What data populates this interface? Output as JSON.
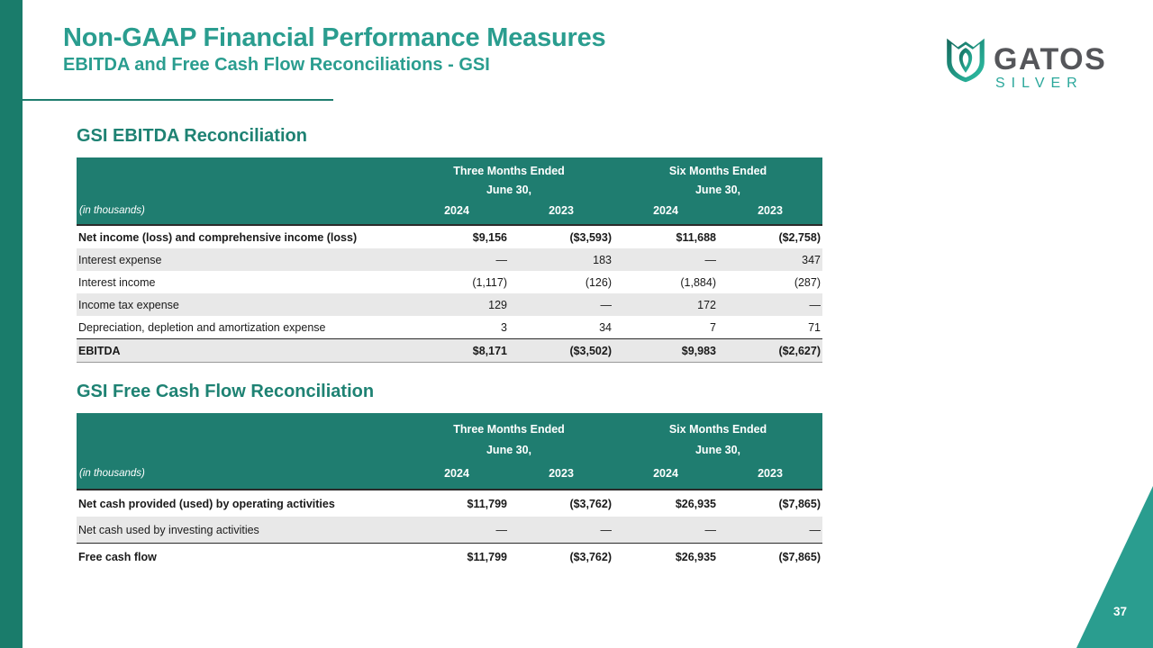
{
  "slide": {
    "title": "Non-GAAP Financial Performance Measures",
    "subtitle": "EBITDA and Free Cash Flow Reconciliations - GSI",
    "page_number": "37"
  },
  "logo": {
    "name": "GATOS",
    "tagline": "SILVER",
    "icon": "gatos-shield-icon"
  },
  "colors": {
    "accent_teal": "#2A9D8F",
    "table_header_teal": "#1F7D70",
    "sidebar_teal": "#1A7C6B",
    "section_heading_teal": "#1E8273",
    "row_stripe_gray": "#E8E8E8",
    "logo_gray": "#55565A"
  },
  "tables": [
    {
      "heading": "GSI EBITDA Reconciliation",
      "header": {
        "group_1": "Three Months Ended",
        "group_2": "Six Months Ended",
        "date_line": "June 30,",
        "note": "(in thousands)",
        "years": [
          "2024",
          "2023",
          "2024",
          "2023"
        ]
      },
      "rows": [
        {
          "label": "Net income (loss) and comprehensive income (loss)",
          "values": [
            "$9,156",
            "($3,593)",
            "$11,688",
            "($2,758)"
          ],
          "bold": true,
          "shaded": false,
          "total": false
        },
        {
          "label": "Interest expense",
          "values": [
            "—",
            "183",
            "—",
            "347"
          ],
          "bold": false,
          "shaded": true,
          "total": false
        },
        {
          "label": "Interest income",
          "values": [
            "(1,117)",
            "(126)",
            "(1,884)",
            "(287)"
          ],
          "bold": false,
          "shaded": false,
          "total": false
        },
        {
          "label": "Income tax expense",
          "values": [
            "129",
            "—",
            "172",
            "—"
          ],
          "bold": false,
          "shaded": true,
          "total": false
        },
        {
          "label": "Depreciation, depletion and amortization expense",
          "values": [
            "3",
            "34",
            "7",
            "71"
          ],
          "bold": false,
          "shaded": false,
          "total": false
        },
        {
          "label": "EBITDA",
          "values": [
            "$8,171",
            "($3,502)",
            "$9,983",
            "($2,627)"
          ],
          "bold": true,
          "shaded": true,
          "total": true,
          "bottom_border": true
        }
      ]
    },
    {
      "heading": "GSI Free Cash Flow Reconciliation",
      "header": {
        "group_1": "Three Months Ended",
        "group_2": "Six Months Ended",
        "date_line": "June 30,",
        "note": "(in thousands)",
        "years": [
          "2024",
          "2023",
          "2024",
          "2023"
        ]
      },
      "rows": [
        {
          "label": "Net cash provided (used) by operating activities",
          "values": [
            "$11,799",
            "($3,762)",
            "$26,935",
            "($7,865)"
          ],
          "bold": true,
          "shaded": false,
          "total": false
        },
        {
          "label": "Net cash used by investing activities",
          "values": [
            "—",
            "—",
            "—",
            "—"
          ],
          "bold": false,
          "shaded": true,
          "total": false
        },
        {
          "label": "Free cash flow",
          "values": [
            "$11,799",
            "($3,762)",
            "$26,935",
            "($7,865)"
          ],
          "bold": true,
          "shaded": false,
          "total": true
        }
      ]
    }
  ]
}
